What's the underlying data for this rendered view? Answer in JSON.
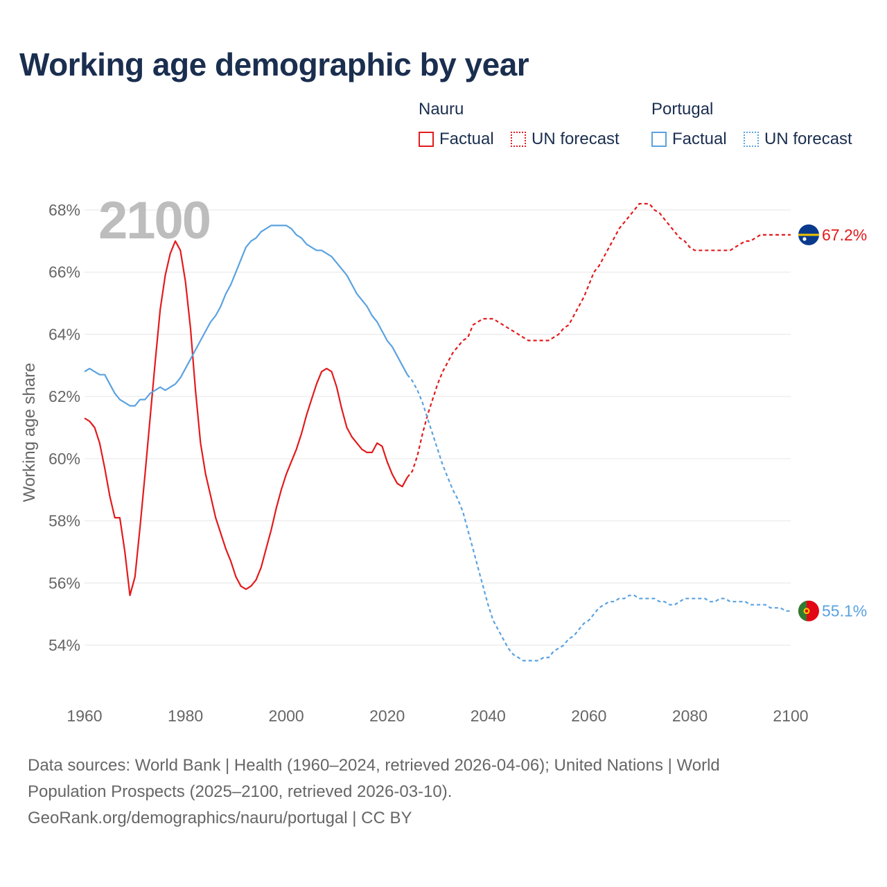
{
  "title": "Working age demographic by year",
  "legend": {
    "groups": [
      {
        "name": "Nauru",
        "factual_label": "Factual",
        "forecast_label": "UN forecast",
        "color": "#e31a1c"
      },
      {
        "name": "Portugal",
        "factual_label": "Factual",
        "forecast_label": "UN forecast",
        "color": "#5aa2e0"
      }
    ]
  },
  "flags": {
    "nauru": "nauru-flag-icon",
    "portugal": "portugal-flag-icon"
  },
  "chart_data": {
    "type": "line",
    "title": "Working age demographic by year",
    "watermark_year": "2100",
    "xlabel": "",
    "ylabel": "Working age share",
    "xlim": [
      1960,
      2100
    ],
    "ylim": [
      53,
      69
    ],
    "x_ticks": [
      1960,
      1980,
      2000,
      2020,
      2040,
      2060,
      2080,
      2100
    ],
    "y_ticks": [
      54,
      56,
      58,
      60,
      62,
      64,
      66,
      68
    ],
    "y_tick_labels": [
      "54%",
      "56%",
      "58%",
      "60%",
      "62%",
      "64%",
      "66%",
      "68%"
    ],
    "factual_end_year": 2024,
    "series": [
      {
        "name": "Nauru",
        "color": "#e31a1c",
        "end_label": "67.2%",
        "points": [
          [
            1960,
            61.3
          ],
          [
            1961,
            61.2
          ],
          [
            1962,
            61.0
          ],
          [
            1963,
            60.5
          ],
          [
            1964,
            59.7
          ],
          [
            1965,
            58.8
          ],
          [
            1966,
            58.1
          ],
          [
            1967,
            58.1
          ],
          [
            1968,
            57.0
          ],
          [
            1969,
            55.6
          ],
          [
            1970,
            56.2
          ],
          [
            1971,
            57.8
          ],
          [
            1972,
            59.5
          ],
          [
            1973,
            61.3
          ],
          [
            1974,
            63.1
          ],
          [
            1975,
            64.8
          ],
          [
            1976,
            65.9
          ],
          [
            1977,
            66.6
          ],
          [
            1978,
            67.0
          ],
          [
            1979,
            66.7
          ],
          [
            1980,
            65.7
          ],
          [
            1981,
            64.2
          ],
          [
            1982,
            62.2
          ],
          [
            1983,
            60.5
          ],
          [
            1984,
            59.5
          ],
          [
            1985,
            58.8
          ],
          [
            1986,
            58.1
          ],
          [
            1987,
            57.6
          ],
          [
            1988,
            57.1
          ],
          [
            1989,
            56.7
          ],
          [
            1990,
            56.2
          ],
          [
            1991,
            55.9
          ],
          [
            1992,
            55.8
          ],
          [
            1993,
            55.9
          ],
          [
            1994,
            56.1
          ],
          [
            1995,
            56.5
          ],
          [
            1996,
            57.1
          ],
          [
            1997,
            57.7
          ],
          [
            1998,
            58.4
          ],
          [
            1999,
            59.0
          ],
          [
            2000,
            59.5
          ],
          [
            2001,
            59.9
          ],
          [
            2002,
            60.3
          ],
          [
            2003,
            60.8
          ],
          [
            2004,
            61.4
          ],
          [
            2005,
            61.9
          ],
          [
            2006,
            62.4
          ],
          [
            2007,
            62.8
          ],
          [
            2008,
            62.9
          ],
          [
            2009,
            62.8
          ],
          [
            2010,
            62.3
          ],
          [
            2011,
            61.6
          ],
          [
            2012,
            61.0
          ],
          [
            2013,
            60.7
          ],
          [
            2014,
            60.5
          ],
          [
            2015,
            60.3
          ],
          [
            2016,
            60.2
          ],
          [
            2017,
            60.2
          ],
          [
            2018,
            60.5
          ],
          [
            2019,
            60.4
          ],
          [
            2020,
            59.9
          ],
          [
            2021,
            59.5
          ],
          [
            2022,
            59.2
          ],
          [
            2023,
            59.1
          ],
          [
            2024,
            59.4
          ],
          [
            2025,
            59.6
          ],
          [
            2026,
            60.1
          ],
          [
            2027,
            60.8
          ],
          [
            2028,
            61.4
          ],
          [
            2029,
            61.9
          ],
          [
            2030,
            62.4
          ],
          [
            2031,
            62.8
          ],
          [
            2032,
            63.1
          ],
          [
            2033,
            63.4
          ],
          [
            2034,
            63.6
          ],
          [
            2035,
            63.8
          ],
          [
            2036,
            63.9
          ],
          [
            2037,
            64.3
          ],
          [
            2038,
            64.4
          ],
          [
            2039,
            64.5
          ],
          [
            2040,
            64.5
          ],
          [
            2041,
            64.5
          ],
          [
            2042,
            64.4
          ],
          [
            2043,
            64.3
          ],
          [
            2044,
            64.2
          ],
          [
            2045,
            64.1
          ],
          [
            2046,
            64.0
          ],
          [
            2047,
            63.9
          ],
          [
            2048,
            63.8
          ],
          [
            2049,
            63.8
          ],
          [
            2050,
            63.8
          ],
          [
            2051,
            63.8
          ],
          [
            2052,
            63.8
          ],
          [
            2053,
            63.9
          ],
          [
            2054,
            64.0
          ],
          [
            2055,
            64.2
          ],
          [
            2056,
            64.3
          ],
          [
            2057,
            64.6
          ],
          [
            2058,
            64.9
          ],
          [
            2059,
            65.2
          ],
          [
            2060,
            65.6
          ],
          [
            2061,
            66.0
          ],
          [
            2062,
            66.2
          ],
          [
            2063,
            66.5
          ],
          [
            2064,
            66.8
          ],
          [
            2065,
            67.1
          ],
          [
            2066,
            67.4
          ],
          [
            2067,
            67.6
          ],
          [
            2068,
            67.8
          ],
          [
            2069,
            68.0
          ],
          [
            2070,
            68.2
          ],
          [
            2071,
            68.2
          ],
          [
            2072,
            68.2
          ],
          [
            2073,
            68.0
          ],
          [
            2074,
            67.9
          ],
          [
            2075,
            67.7
          ],
          [
            2076,
            67.5
          ],
          [
            2077,
            67.3
          ],
          [
            2078,
            67.1
          ],
          [
            2079,
            67.0
          ],
          [
            2080,
            66.8
          ],
          [
            2081,
            66.7
          ],
          [
            2082,
            66.7
          ],
          [
            2083,
            66.7
          ],
          [
            2084,
            66.7
          ],
          [
            2085,
            66.7
          ],
          [
            2086,
            66.7
          ],
          [
            2087,
            66.7
          ],
          [
            2088,
            66.7
          ],
          [
            2089,
            66.8
          ],
          [
            2090,
            66.9
          ],
          [
            2091,
            67.0
          ],
          [
            2092,
            67.0
          ],
          [
            2093,
            67.1
          ],
          [
            2094,
            67.2
          ],
          [
            2095,
            67.2
          ],
          [
            2096,
            67.2
          ],
          [
            2097,
            67.2
          ],
          [
            2098,
            67.2
          ],
          [
            2099,
            67.2
          ],
          [
            2100,
            67.2
          ]
        ]
      },
      {
        "name": "Portugal",
        "color": "#5aa2e0",
        "end_label": "55.1%",
        "points": [
          [
            1960,
            62.8
          ],
          [
            1961,
            62.9
          ],
          [
            1962,
            62.8
          ],
          [
            1963,
            62.7
          ],
          [
            1964,
            62.7
          ],
          [
            1965,
            62.4
          ],
          [
            1966,
            62.1
          ],
          [
            1967,
            61.9
          ],
          [
            1968,
            61.8
          ],
          [
            1969,
            61.7
          ],
          [
            1970,
            61.7
          ],
          [
            1971,
            61.9
          ],
          [
            1972,
            61.9
          ],
          [
            1973,
            62.1
          ],
          [
            1974,
            62.2
          ],
          [
            1975,
            62.3
          ],
          [
            1976,
            62.2
          ],
          [
            1977,
            62.3
          ],
          [
            1978,
            62.4
          ],
          [
            1979,
            62.6
          ],
          [
            1980,
            62.9
          ],
          [
            1981,
            63.2
          ],
          [
            1982,
            63.5
          ],
          [
            1983,
            63.8
          ],
          [
            1984,
            64.1
          ],
          [
            1985,
            64.4
          ],
          [
            1986,
            64.6
          ],
          [
            1987,
            64.9
          ],
          [
            1988,
            65.3
          ],
          [
            1989,
            65.6
          ],
          [
            1990,
            66.0
          ],
          [
            1991,
            66.4
          ],
          [
            1992,
            66.8
          ],
          [
            1993,
            67.0
          ],
          [
            1994,
            67.1
          ],
          [
            1995,
            67.3
          ],
          [
            1996,
            67.4
          ],
          [
            1997,
            67.5
          ],
          [
            1998,
            67.5
          ],
          [
            1999,
            67.5
          ],
          [
            2000,
            67.5
          ],
          [
            2001,
            67.4
          ],
          [
            2002,
            67.2
          ],
          [
            2003,
            67.1
          ],
          [
            2004,
            66.9
          ],
          [
            2005,
            66.8
          ],
          [
            2006,
            66.7
          ],
          [
            2007,
            66.7
          ],
          [
            2008,
            66.6
          ],
          [
            2009,
            66.5
          ],
          [
            2010,
            66.3
          ],
          [
            2011,
            66.1
          ],
          [
            2012,
            65.9
          ],
          [
            2013,
            65.6
          ],
          [
            2014,
            65.3
          ],
          [
            2015,
            65.1
          ],
          [
            2016,
            64.9
          ],
          [
            2017,
            64.6
          ],
          [
            2018,
            64.4
          ],
          [
            2019,
            64.1
          ],
          [
            2020,
            63.8
          ],
          [
            2021,
            63.6
          ],
          [
            2022,
            63.3
          ],
          [
            2023,
            63.0
          ],
          [
            2024,
            62.7
          ],
          [
            2025,
            62.5
          ],
          [
            2026,
            62.2
          ],
          [
            2027,
            61.8
          ],
          [
            2028,
            61.3
          ],
          [
            2029,
            60.8
          ],
          [
            2030,
            60.3
          ],
          [
            2031,
            59.8
          ],
          [
            2032,
            59.4
          ],
          [
            2033,
            59.0
          ],
          [
            2034,
            58.7
          ],
          [
            2035,
            58.3
          ],
          [
            2036,
            57.7
          ],
          [
            2037,
            57.1
          ],
          [
            2038,
            56.5
          ],
          [
            2039,
            55.9
          ],
          [
            2040,
            55.3
          ],
          [
            2041,
            54.8
          ],
          [
            2042,
            54.5
          ],
          [
            2043,
            54.2
          ],
          [
            2044,
            53.9
          ],
          [
            2045,
            53.7
          ],
          [
            2046,
            53.6
          ],
          [
            2047,
            53.5
          ],
          [
            2048,
            53.5
          ],
          [
            2049,
            53.5
          ],
          [
            2050,
            53.5
          ],
          [
            2051,
            53.6
          ],
          [
            2052,
            53.6
          ],
          [
            2053,
            53.8
          ],
          [
            2054,
            53.9
          ],
          [
            2055,
            54.0
          ],
          [
            2056,
            54.2
          ],
          [
            2057,
            54.3
          ],
          [
            2058,
            54.5
          ],
          [
            2059,
            54.7
          ],
          [
            2060,
            54.8
          ],
          [
            2061,
            55.0
          ],
          [
            2062,
            55.2
          ],
          [
            2063,
            55.3
          ],
          [
            2064,
            55.4
          ],
          [
            2065,
            55.4
          ],
          [
            2066,
            55.5
          ],
          [
            2067,
            55.5
          ],
          [
            2068,
            55.6
          ],
          [
            2069,
            55.6
          ],
          [
            2070,
            55.5
          ],
          [
            2071,
            55.5
          ],
          [
            2072,
            55.5
          ],
          [
            2073,
            55.5
          ],
          [
            2074,
            55.4
          ],
          [
            2075,
            55.4
          ],
          [
            2076,
            55.3
          ],
          [
            2077,
            55.3
          ],
          [
            2078,
            55.4
          ],
          [
            2079,
            55.5
          ],
          [
            2080,
            55.5
          ],
          [
            2081,
            55.5
          ],
          [
            2082,
            55.5
          ],
          [
            2083,
            55.5
          ],
          [
            2084,
            55.4
          ],
          [
            2085,
            55.4
          ],
          [
            2086,
            55.5
          ],
          [
            2087,
            55.5
          ],
          [
            2088,
            55.4
          ],
          [
            2089,
            55.4
          ],
          [
            2090,
            55.4
          ],
          [
            2091,
            55.4
          ],
          [
            2092,
            55.3
          ],
          [
            2093,
            55.3
          ],
          [
            2094,
            55.3
          ],
          [
            2095,
            55.3
          ],
          [
            2096,
            55.2
          ],
          [
            2097,
            55.2
          ],
          [
            2098,
            55.2
          ],
          [
            2099,
            55.1
          ],
          [
            2100,
            55.1
          ]
        ]
      }
    ]
  },
  "footer": {
    "line1": "Data sources: World Bank | Health (1960–2024, retrieved 2026-04-06); United Nations | World",
    "line2": "Population Prospects (2025–2100, retrieved 2026-03-10).",
    "line3": "GeoRank.org/demographics/nauru/portugal | CC BY"
  }
}
